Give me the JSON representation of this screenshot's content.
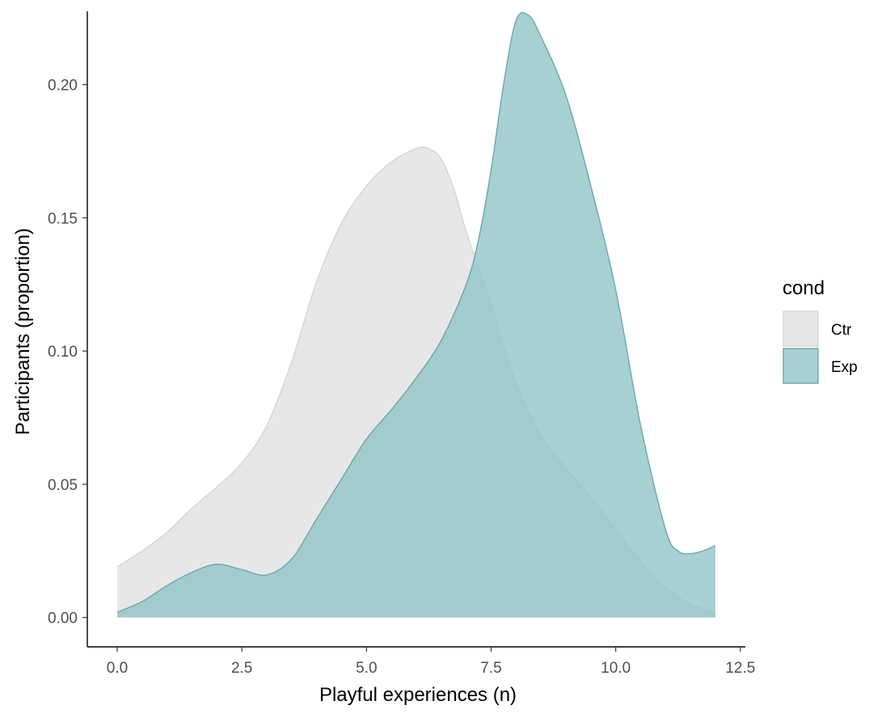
{
  "chart_data": {
    "type": "area",
    "subtype": "density",
    "xlabel": "Playful experiences (n)",
    "ylabel": "Participants (proportion)",
    "xlim": [
      -0.6,
      12.6
    ],
    "ylim": [
      -0.011,
      0.2275
    ],
    "x_ticks": [
      0,
      2.5,
      5,
      7.5,
      10,
      12.5
    ],
    "x_tick_labels": [
      "0.0",
      "2.5",
      "5.0",
      "7.5",
      "10.0",
      "12.5"
    ],
    "y_ticks": [
      0,
      0.05,
      0.1,
      0.15,
      0.2
    ],
    "y_tick_labels": [
      "0.00",
      "0.05",
      "0.10",
      "0.15",
      "0.20"
    ],
    "grid": false,
    "legend": {
      "title": "cond",
      "position": "right"
    },
    "series": [
      {
        "name": "Ctr",
        "fill": "#e3e3e3",
        "stroke": "#d4d4d4",
        "opacity": 0.85,
        "x": [
          0,
          0.5,
          1,
          1.5,
          2,
          2.5,
          3,
          3.5,
          4,
          4.5,
          5,
          5.5,
          6,
          6.25,
          6.5,
          6.75,
          7,
          7.5,
          8,
          8.5,
          9,
          9.5,
          10,
          10.5,
          11,
          11.5,
          12
        ],
        "y": [
          0.019,
          0.025,
          0.032,
          0.041,
          0.049,
          0.058,
          0.072,
          0.096,
          0.126,
          0.148,
          0.162,
          0.171,
          0.176,
          0.176,
          0.172,
          0.161,
          0.145,
          0.117,
          0.088,
          0.068,
          0.056,
          0.045,
          0.033,
          0.021,
          0.011,
          0.005,
          0.002
        ]
      },
      {
        "name": "Exp",
        "fill": "#8ec3c5",
        "stroke": "#6ba7ab",
        "opacity": 0.78,
        "x": [
          0,
          0.5,
          1,
          1.5,
          2,
          2.5,
          3,
          3.5,
          4,
          4.5,
          5,
          5.5,
          6,
          6.5,
          7,
          7.25,
          7.5,
          7.75,
          8,
          8.25,
          8.5,
          9,
          9.5,
          10,
          10.5,
          11,
          11.25,
          11.5,
          11.75,
          12
        ],
        "y": [
          0.002,
          0.006,
          0.012,
          0.017,
          0.02,
          0.018,
          0.016,
          0.022,
          0.037,
          0.052,
          0.067,
          0.078,
          0.09,
          0.104,
          0.125,
          0.142,
          0.168,
          0.2,
          0.224,
          0.226,
          0.218,
          0.196,
          0.162,
          0.123,
          0.072,
          0.033,
          0.025,
          0.024,
          0.025,
          0.027
        ]
      }
    ]
  }
}
